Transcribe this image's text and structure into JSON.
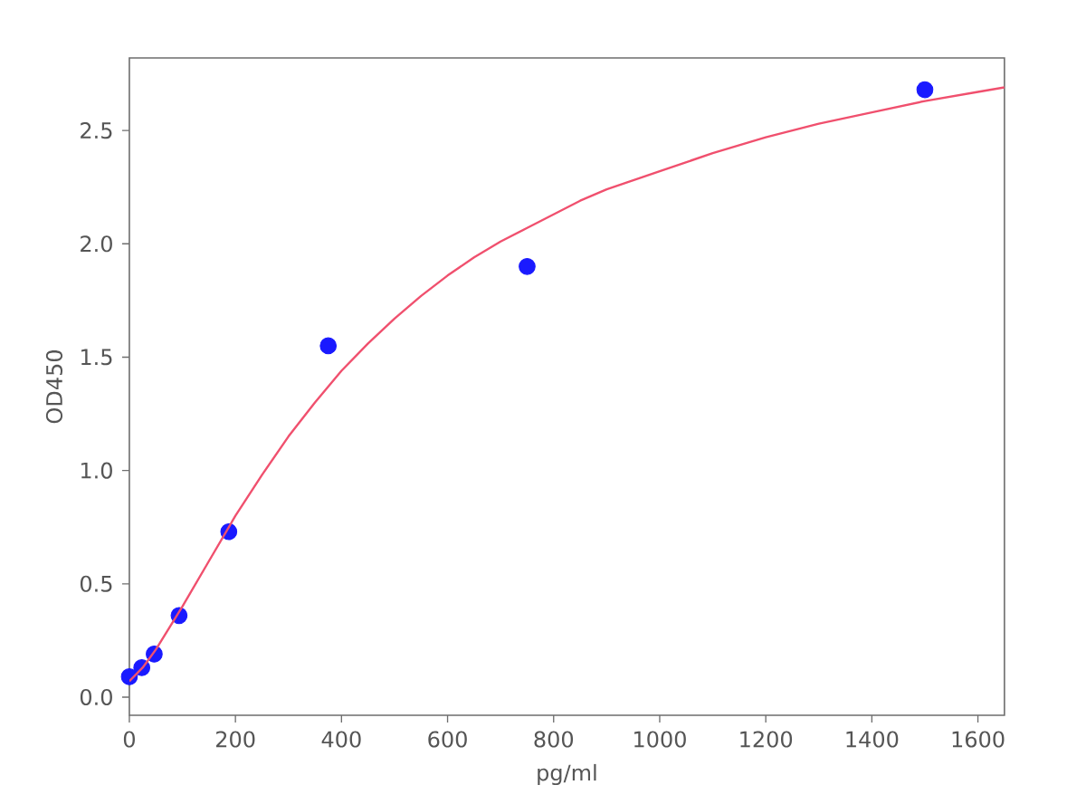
{
  "chart_data": {
    "type": "scatter",
    "xlabel": "pg/ml",
    "ylabel": "OD450",
    "xlim": [
      0,
      1650
    ],
    "ylim": [
      -0.08,
      2.82
    ],
    "xticks": [
      0,
      200,
      400,
      600,
      800,
      1000,
      1200,
      1400,
      1600
    ],
    "yticks": [
      {
        "value": 0,
        "label": "0.0"
      },
      0.5,
      {
        "value": 1,
        "label": "1.0"
      },
      1.5,
      {
        "value": 2,
        "label": "2.0"
      },
      2.5
    ],
    "series": [
      {
        "color": "#1a1aff",
        "marker": "circle",
        "x": [
          0,
          23.44,
          46.88,
          93.75,
          187.5,
          375,
          750,
          1500
        ],
        "values": [
          0.09,
          0.13,
          0.19,
          0.36,
          0.73,
          1.55,
          1.9,
          2.68
        ]
      },
      {
        "type": "line",
        "color": "#f0506e",
        "marker": "none",
        "x": [
          0,
          25,
          50,
          100,
          150,
          200,
          250,
          300,
          350,
          400,
          450,
          500,
          550,
          600,
          650,
          700,
          750,
          800,
          850,
          900,
          950,
          1000,
          1100,
          1200,
          1300,
          1400,
          1500,
          1600,
          1650
        ],
        "values": [
          0.07,
          0.13,
          0.21,
          0.4,
          0.6,
          0.8,
          0.98,
          1.15,
          1.3,
          1.44,
          1.56,
          1.67,
          1.77,
          1.86,
          1.94,
          2.01,
          2.07,
          2.13,
          2.19,
          2.24,
          2.28,
          2.32,
          2.4,
          2.47,
          2.53,
          2.58,
          2.63,
          2.67,
          2.69
        ]
      }
    ]
  }
}
